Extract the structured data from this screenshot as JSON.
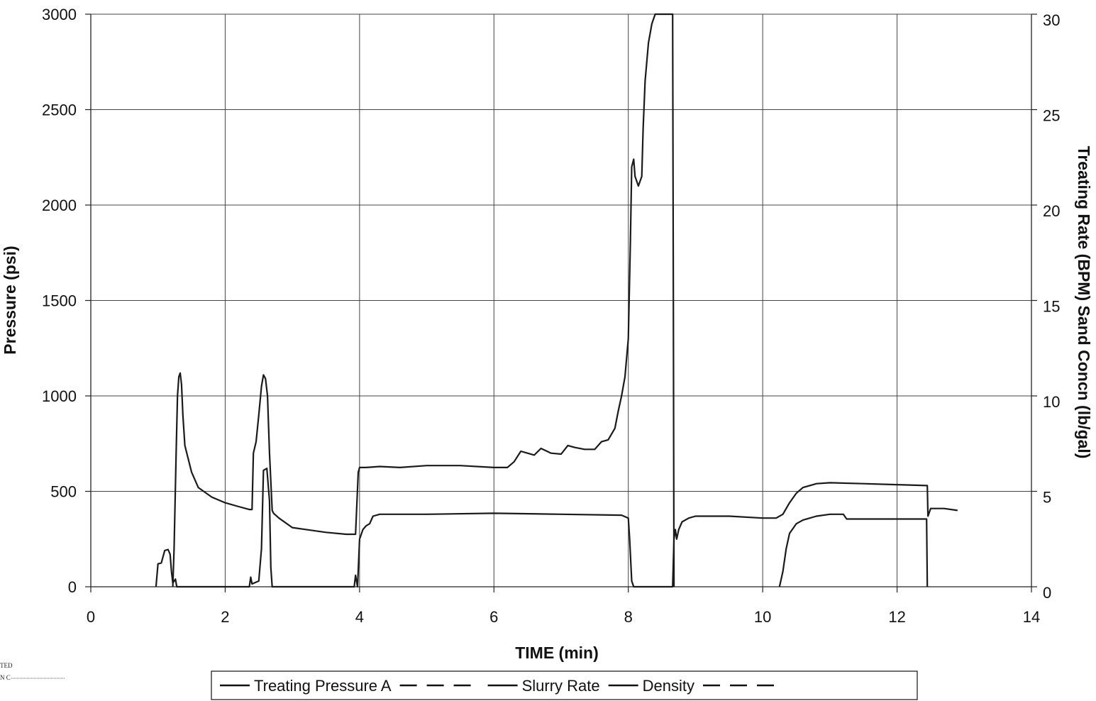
{
  "stamp": {
    "line1": "TED",
    "line2": "N C"
  },
  "chart_data": {
    "type": "line",
    "xlabel": "TIME (min)",
    "ylabel": "Pressure (psi)",
    "y2label": "Treating Rate (BPM) Sand Concn (lb/gal)",
    "xlim": [
      0,
      14
    ],
    "ylim": [
      0,
      3000
    ],
    "y2lim": [
      0,
      30
    ],
    "x_ticks": [
      0,
      2,
      4,
      6,
      8,
      10,
      12,
      14
    ],
    "y_ticks": [
      0,
      500,
      1000,
      1500,
      2000,
      2500,
      3000
    ],
    "y2_ticks": [
      0,
      5,
      10,
      15,
      20,
      25,
      30
    ],
    "grid": true,
    "legend_position": "bottom",
    "legend": [
      {
        "label": "Treating Pressure A",
        "style": "solid"
      },
      {
        "label": "",
        "style": "dash"
      },
      {
        "label": "Slurry Rate",
        "style": "solid"
      },
      {
        "label": "Density",
        "style": "solid"
      },
      {
        "label": "",
        "style": "dash"
      }
    ],
    "series": [
      {
        "axis": "left",
        "color": "#1a1a1a",
        "points": [
          [
            1.22,
            0
          ],
          [
            1.24,
            200
          ],
          [
            1.27,
            700
          ],
          [
            1.29,
            1000
          ],
          [
            1.31,
            1100
          ],
          [
            1.33,
            1120
          ],
          [
            1.35,
            1060
          ],
          [
            1.37,
            900
          ],
          [
            1.4,
            740
          ],
          [
            1.5,
            600
          ],
          [
            1.6,
            520
          ],
          [
            1.8,
            470
          ],
          [
            2.0,
            440
          ],
          [
            2.2,
            420
          ],
          [
            2.36,
            405
          ],
          [
            2.4,
            405
          ],
          [
            2.42,
            700
          ],
          [
            2.46,
            760
          ],
          [
            2.5,
            900
          ],
          [
            2.54,
            1050
          ],
          [
            2.57,
            1110
          ],
          [
            2.6,
            1090
          ],
          [
            2.63,
            1000
          ],
          [
            2.66,
            700
          ],
          [
            2.7,
            400
          ],
          [
            2.72,
            385
          ],
          [
            2.8,
            360
          ],
          [
            3.0,
            310
          ],
          [
            3.2,
            300
          ],
          [
            3.5,
            285
          ],
          [
            3.8,
            275
          ],
          [
            3.94,
            275
          ],
          [
            3.98,
            600
          ],
          [
            4.0,
            625
          ],
          [
            4.1,
            625
          ],
          [
            4.3,
            630
          ],
          [
            4.6,
            625
          ],
          [
            5.0,
            635
          ],
          [
            5.5,
            635
          ],
          [
            6.0,
            625
          ],
          [
            6.2,
            625
          ],
          [
            6.3,
            655
          ],
          [
            6.4,
            710
          ],
          [
            6.5,
            700
          ],
          [
            6.6,
            690
          ],
          [
            6.7,
            725
          ],
          [
            6.85,
            700
          ],
          [
            7.0,
            695
          ],
          [
            7.1,
            740
          ],
          [
            7.2,
            730
          ],
          [
            7.35,
            720
          ],
          [
            7.5,
            720
          ],
          [
            7.6,
            760
          ],
          [
            7.7,
            770
          ],
          [
            7.8,
            830
          ],
          [
            7.85,
            920
          ],
          [
            7.9,
            1000
          ],
          [
            7.95,
            1100
          ],
          [
            8.0,
            1300
          ],
          [
            8.03,
            1800
          ],
          [
            8.05,
            2200
          ],
          [
            8.08,
            2240
          ],
          [
            8.1,
            2150
          ],
          [
            8.15,
            2100
          ],
          [
            8.2,
            2150
          ],
          [
            8.22,
            2400
          ],
          [
            8.25,
            2650
          ],
          [
            8.3,
            2850
          ],
          [
            8.35,
            2950
          ],
          [
            8.4,
            3000
          ],
          [
            8.66,
            3000
          ],
          [
            8.67,
            1500
          ],
          [
            8.68,
            0
          ]
        ]
      },
      {
        "axis": "left",
        "color": "#1a1a1a",
        "points": [
          [
            0.97,
            0
          ],
          [
            1.0,
            120
          ],
          [
            1.05,
            125
          ],
          [
            1.1,
            190
          ],
          [
            1.15,
            195
          ],
          [
            1.18,
            170
          ],
          [
            1.2,
            80
          ],
          [
            1.22,
            20
          ],
          [
            1.26,
            40
          ],
          [
            1.28,
            0
          ],
          [
            2.36,
            0
          ],
          [
            2.38,
            50
          ],
          [
            2.4,
            15
          ],
          [
            2.5,
            30
          ],
          [
            2.54,
            200
          ],
          [
            2.57,
            610
          ],
          [
            2.62,
            620
          ],
          [
            2.66,
            450
          ],
          [
            2.68,
            100
          ],
          [
            2.7,
            0
          ],
          [
            3.92,
            0
          ],
          [
            3.94,
            60
          ],
          [
            3.97,
            0
          ],
          [
            4.0,
            250
          ],
          [
            4.05,
            300
          ],
          [
            4.1,
            320
          ],
          [
            4.15,
            330
          ],
          [
            4.2,
            370
          ],
          [
            4.3,
            380
          ],
          [
            5.0,
            380
          ],
          [
            6.0,
            385
          ],
          [
            7.0,
            380
          ],
          [
            7.9,
            375
          ],
          [
            8.0,
            360
          ],
          [
            8.02,
            250
          ],
          [
            8.05,
            30
          ],
          [
            8.08,
            0
          ],
          [
            8.2,
            0
          ],
          [
            8.66,
            0
          ],
          [
            8.68,
            250
          ],
          [
            8.7,
            300
          ],
          [
            8.72,
            250
          ],
          [
            8.75,
            300
          ],
          [
            8.8,
            340
          ],
          [
            8.9,
            360
          ],
          [
            9.0,
            370
          ],
          [
            9.5,
            370
          ],
          [
            10.0,
            360
          ],
          [
            10.2,
            360
          ],
          [
            10.3,
            380
          ],
          [
            10.4,
            440
          ],
          [
            10.5,
            490
          ],
          [
            10.6,
            520
          ],
          [
            10.8,
            540
          ],
          [
            11.0,
            545
          ],
          [
            11.5,
            540
          ],
          [
            12.0,
            535
          ],
          [
            12.45,
            530
          ],
          [
            12.46,
            370
          ],
          [
            12.5,
            410
          ],
          [
            12.7,
            410
          ],
          [
            12.9,
            400
          ]
        ]
      },
      {
        "axis": "left",
        "color": "#1a1a1a",
        "points": [
          [
            10.25,
            0
          ],
          [
            10.3,
            80
          ],
          [
            10.35,
            200
          ],
          [
            10.4,
            280
          ],
          [
            10.5,
            330
          ],
          [
            10.6,
            350
          ],
          [
            10.8,
            370
          ],
          [
            11.0,
            380
          ],
          [
            11.2,
            380
          ],
          [
            11.25,
            355
          ],
          [
            11.5,
            355
          ],
          [
            12.0,
            355
          ],
          [
            12.44,
            355
          ],
          [
            12.45,
            0
          ]
        ]
      }
    ]
  }
}
